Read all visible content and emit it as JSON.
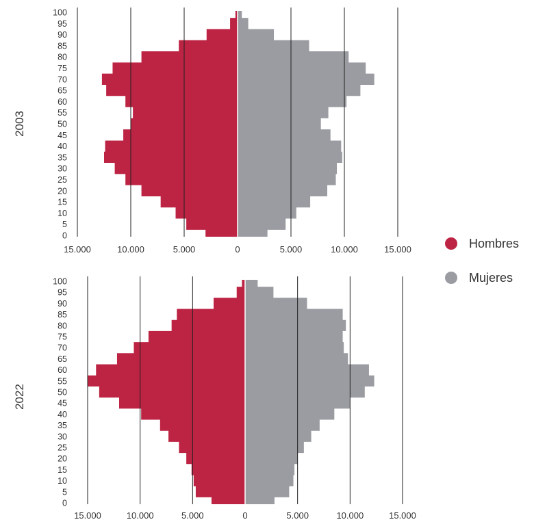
{
  "legend": {
    "items": [
      {
        "label": "Hombres",
        "color": "#BD2444"
      },
      {
        "label": "Mujeres",
        "color": "#9A9CA1"
      }
    ]
  },
  "chart_data": [
    {
      "type": "bar",
      "orientation": "horizontal population pyramid",
      "year_label": "2003",
      "ages": [
        0,
        5,
        10,
        15,
        20,
        25,
        30,
        35,
        40,
        45,
        50,
        55,
        60,
        65,
        70,
        75,
        80,
        85,
        90,
        95,
        100
      ],
      "ytick_labels": [
        "0",
        "5",
        "10",
        "15",
        "20",
        "25",
        "30",
        "35",
        "40",
        "45",
        "50",
        "55",
        "60",
        "65",
        "70",
        "75",
        "80",
        "85",
        "90",
        "95",
        "100"
      ],
      "xtick_labels": [
        "15.000",
        "10.000",
        "5.000",
        "0",
        "5.000",
        "10.000",
        "15.000"
      ],
      "xlim": [
        -15000,
        15000
      ],
      "grid": "vertical lines at 15.000 steps of 5.000",
      "series": [
        {
          "name": "Hombres",
          "color": "#BD2444",
          "values": [
            3000,
            4800,
            5800,
            7200,
            9000,
            10500,
            11500,
            12500,
            12400,
            10700,
            10000,
            9800,
            10500,
            12300,
            12700,
            11700,
            9000,
            5500,
            2900,
            700,
            200
          ]
        },
        {
          "name": "Mujeres",
          "color": "#9A9CA1",
          "values": [
            2800,
            4500,
            5500,
            6800,
            8400,
            9200,
            9300,
            9800,
            9700,
            8700,
            7800,
            8500,
            10200,
            11500,
            12800,
            12000,
            10400,
            6700,
            3400,
            1000,
            400
          ]
        }
      ]
    },
    {
      "type": "bar",
      "orientation": "horizontal population pyramid",
      "year_label": "2022",
      "ages": [
        0,
        5,
        10,
        15,
        20,
        25,
        30,
        35,
        40,
        45,
        50,
        55,
        60,
        65,
        70,
        75,
        80,
        85,
        90,
        95,
        100
      ],
      "ytick_labels": [
        "0",
        "5",
        "10",
        "15",
        "20",
        "25",
        "30",
        "35",
        "40",
        "45",
        "50",
        "55",
        "60",
        "65",
        "70",
        "75",
        "80",
        "85",
        "90",
        "95",
        "100"
      ],
      "xtick_labels": [
        "15.000",
        "10.000",
        "5.000",
        "0",
        "5.000",
        "10.000",
        "15.000"
      ],
      "xlim": [
        -15000,
        15000
      ],
      "grid": "vertical lines at 15.000 steps of 5.000",
      "series": [
        {
          "name": "Hombres",
          "color": "#BD2444",
          "values": [
            3200,
            4700,
            4900,
            5100,
            5600,
            6300,
            7300,
            8100,
            9900,
            12000,
            13900,
            15000,
            14200,
            12200,
            10600,
            9200,
            7000,
            6500,
            3000,
            800,
            300
          ]
        },
        {
          "name": "Mujeres",
          "color": "#9A9CA1",
          "values": [
            2800,
            4200,
            4600,
            4700,
            5000,
            5600,
            6300,
            7100,
            8500,
            10000,
            11400,
            12300,
            11800,
            9800,
            9400,
            9300,
            9600,
            9300,
            5900,
            2700,
            1200
          ]
        }
      ]
    }
  ]
}
